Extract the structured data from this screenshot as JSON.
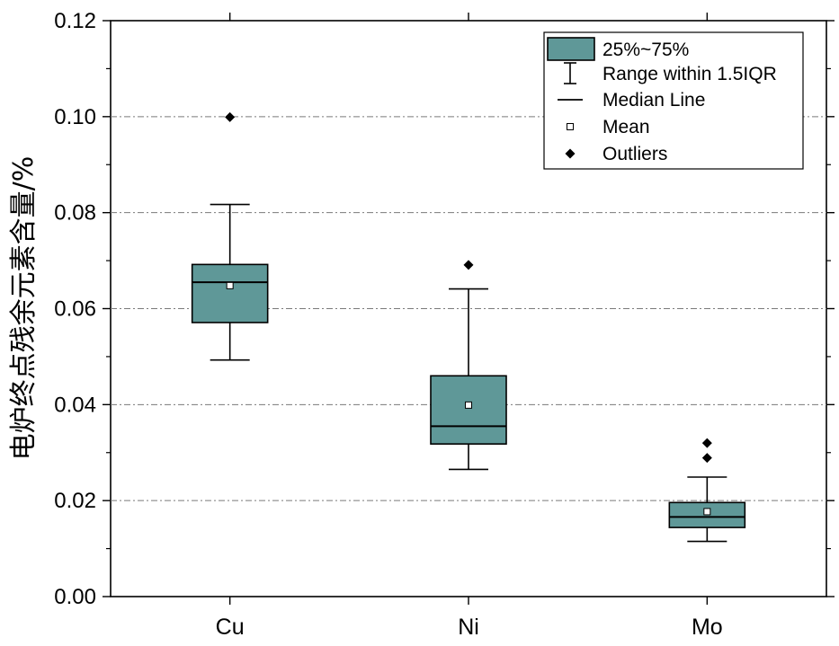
{
  "chart_data": {
    "type": "box",
    "title": "",
    "xlabel": "",
    "ylabel": "电炉终点残余元素含量/%",
    "ylim": [
      0.0,
      0.12
    ],
    "yticks": [
      "0.00",
      "0.02",
      "0.04",
      "0.06",
      "0.08",
      "0.10",
      "0.12"
    ],
    "grid": true,
    "legend_position": "top-right",
    "box_color": "#5F9898",
    "categories": [
      "Cu",
      "Ni",
      "Mo"
    ],
    "boxes": [
      {
        "category": "Cu",
        "whisker_low": 0.0493,
        "q1": 0.0571,
        "median": 0.0655,
        "q3": 0.0692,
        "whisker_high": 0.0817,
        "mean": 0.0648,
        "outliers": [
          0.0999
        ]
      },
      {
        "category": "Ni",
        "whisker_low": 0.0265,
        "q1": 0.0318,
        "median": 0.0355,
        "q3": 0.046,
        "whisker_high": 0.0641,
        "mean": 0.0399,
        "outliers": [
          0.0691
        ]
      },
      {
        "category": "Mo",
        "whisker_low": 0.0115,
        "q1": 0.0144,
        "median": 0.0166,
        "q3": 0.0196,
        "whisker_high": 0.0249,
        "mean": 0.0177,
        "outliers": [
          0.0289,
          0.032
        ]
      }
    ],
    "legend": [
      {
        "symbol": "box",
        "label": "25%~75%"
      },
      {
        "symbol": "whisker",
        "label": "Range within 1.5IQR"
      },
      {
        "symbol": "line",
        "label": "Median Line"
      },
      {
        "symbol": "square",
        "label": "Mean"
      },
      {
        "symbol": "diamond",
        "label": "Outliers"
      }
    ]
  }
}
